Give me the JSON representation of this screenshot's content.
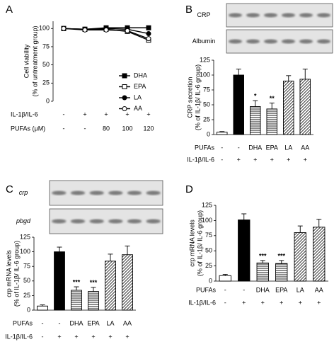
{
  "chart_data": [
    {
      "type": "line",
      "panel": "A",
      "y_label": [
        "Cell viability",
        "(% of untreatment group)"
      ],
      "ylim": [
        0,
        110
      ],
      "yticks": [
        0,
        25,
        50,
        75,
        100
      ],
      "rows": [
        {
          "label": "IL-1β/IL-6",
          "values": [
            "-",
            "+",
            "+",
            "+",
            "+"
          ]
        },
        {
          "label": "PUFAs (μM)",
          "values": [
            "-",
            "-",
            "80",
            "100",
            "120"
          ]
        }
      ],
      "series": [
        {
          "name": "DHA",
          "marker": "filled-square",
          "color": "#000000",
          "values": [
            100,
            99,
            101,
            101,
            101
          ]
        },
        {
          "name": "EPA",
          "marker": "open-square",
          "color": "#000000",
          "values": [
            100,
            99,
            99,
            96,
            84
          ]
        },
        {
          "name": "LA",
          "marker": "filled-circle",
          "color": "#000000",
          "values": [
            100,
            99,
            100,
            99,
            93
          ]
        },
        {
          "name": "AA",
          "marker": "open-circle",
          "color": "#000000",
          "values": [
            100,
            98,
            98,
            97,
            86
          ]
        }
      ]
    },
    {
      "type": "bar",
      "panel": "B",
      "blot_labels": [
        "CRP",
        "Albumin"
      ],
      "y_label": [
        "CRP secretion",
        "(% of IL-1β/ IL-6 group)"
      ],
      "ylim": [
        0,
        125
      ],
      "yticks": [
        0,
        25,
        50,
        75,
        100,
        125
      ],
      "rows": [
        {
          "label": "PUFAs",
          "values": [
            "-",
            "-",
            "DHA",
            "EPA",
            "LA",
            "AA"
          ]
        },
        {
          "label": "IL-1β/IL-6",
          "values": [
            "-",
            "+",
            "+",
            "+",
            "+",
            "+"
          ]
        }
      ],
      "values": [
        4,
        100,
        47,
        43,
        90,
        93
      ],
      "errors": [
        1,
        10,
        10,
        10,
        9,
        17
      ],
      "annotations": [
        null,
        null,
        "*",
        "**",
        null,
        null
      ],
      "patterns": [
        "none",
        "solid",
        "horizontal",
        "horizontal",
        "diagonal",
        "diagonal"
      ]
    },
    {
      "type": "bar",
      "panel": "C",
      "blot_labels": [
        "crp",
        "pbgd"
      ],
      "y_label": [
        "crp mRNA levels",
        "(% of IL-1β/ IL-6 group)"
      ],
      "ylim": [
        0,
        125
      ],
      "yticks": [
        0,
        25,
        50,
        75,
        100,
        125
      ],
      "rows": [
        {
          "label": "PUFAs",
          "values": [
            "-",
            "-",
            "DHA",
            "EPA",
            "LA",
            "AA"
          ]
        },
        {
          "label": "IL-1β/IL-6",
          "values": [
            "-",
            "+",
            "+",
            "+",
            "+",
            "+"
          ]
        }
      ],
      "values": [
        7,
        100,
        34,
        32,
        84,
        95
      ],
      "errors": [
        2,
        8,
        6,
        7,
        12,
        15
      ],
      "annotations": [
        null,
        null,
        "***",
        "***",
        null,
        null
      ],
      "patterns": [
        "none",
        "solid",
        "horizontal",
        "horizontal",
        "diagonal",
        "diagonal"
      ]
    },
    {
      "type": "bar",
      "panel": "D",
      "y_label": [
        "crp mRNA levels",
        "(% of IL-1β/ IL-6 group)"
      ],
      "ylim": [
        0,
        125
      ],
      "yticks": [
        0,
        25,
        50,
        75,
        100,
        125
      ],
      "rows": [
        {
          "label": "PUFAs",
          "values": [
            "-",
            "-",
            "DHA",
            "EPA",
            "LA",
            "AA"
          ]
        },
        {
          "label": "IL-1β/IL-6",
          "values": [
            "-",
            "+",
            "+",
            "+",
            "+",
            "+"
          ]
        }
      ],
      "values": [
        9,
        101,
        30,
        29,
        80,
        89
      ],
      "errors": [
        2,
        10,
        4,
        5,
        11,
        13
      ],
      "annotations": [
        null,
        null,
        "***",
        "***",
        null,
        null
      ],
      "patterns": [
        "none",
        "solid",
        "horizontal",
        "horizontal",
        "diagonal",
        "diagonal"
      ]
    }
  ]
}
